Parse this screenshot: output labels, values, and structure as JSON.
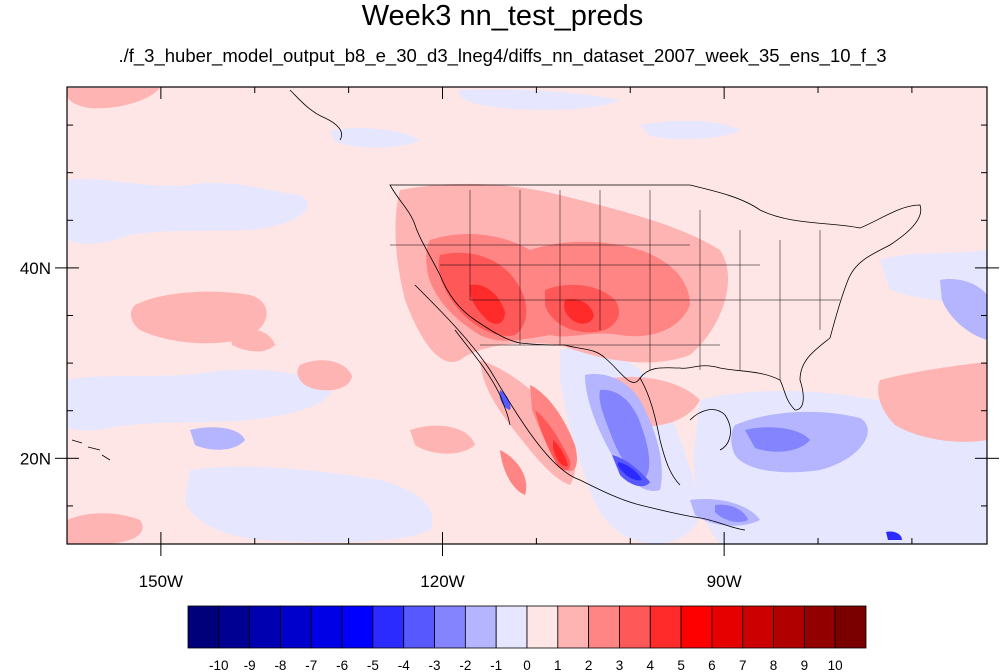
{
  "title": "Week3 nn_test_preds",
  "subtitle": "./f_3_huber_model_output_b8_e_30_d3_lneg4/diffs_nn_dataset_2007_week_35_ens_10_f_3",
  "map": {
    "lon_range": [
      -160,
      -62
    ],
    "lat_range": [
      11,
      59
    ],
    "lat_ticks": [
      {
        "value": 40,
        "label": "40N"
      },
      {
        "value": 20,
        "label": "20N"
      }
    ],
    "lon_ticks": [
      {
        "value": -150,
        "label": "150W"
      },
      {
        "value": -120,
        "label": "120W"
      },
      {
        "value": -90,
        "label": "90W"
      }
    ],
    "background_color": "#ffe6e6"
  },
  "colorbar": {
    "labels": [
      "-10",
      "-9",
      "-8",
      "-7",
      "-6",
      "-5",
      "-4",
      "-3",
      "-2",
      "-1",
      "0",
      "1",
      "2",
      "3",
      "4",
      "5",
      "6",
      "7",
      "8",
      "9",
      "10"
    ],
    "colors": [
      "#00007a",
      "#000093",
      "#0000b0",
      "#0000cc",
      "#0000e6",
      "#0000ff",
      "#2b2bff",
      "#5858ff",
      "#8484ff",
      "#b4b4ff",
      "#e6e6ff",
      "#ffe6e6",
      "#ffb4b4",
      "#ff8484",
      "#ff5858",
      "#ff2b2b",
      "#ff0000",
      "#e60000",
      "#cc0000",
      "#b00000",
      "#930000",
      "#7a0000"
    ]
  }
}
